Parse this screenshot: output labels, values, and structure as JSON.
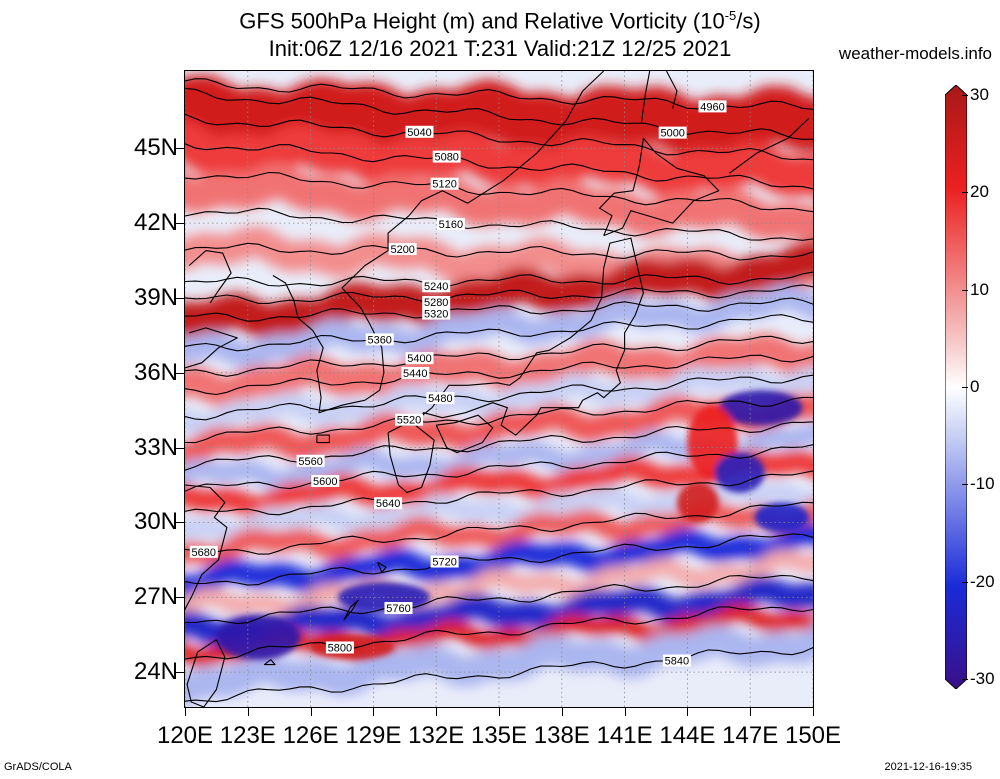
{
  "header": {
    "title_line1_pre": "GFS 500hPa Height (m) and Relative Vorticity (10",
    "title_line1_sup": "-5",
    "title_line1_post": "/s)",
    "title_line2": "Init:06Z 12/16 2021 T:231 Valid:21Z 12/25 2021",
    "site": "weather-models.info"
  },
  "map": {
    "lon_range": [
      120,
      150
    ],
    "lat_range": [
      22.6,
      48.1
    ],
    "lat_ticks": [
      {
        "value": 45,
        "label": "45N"
      },
      {
        "value": 42,
        "label": "42N"
      },
      {
        "value": 39,
        "label": "39N"
      },
      {
        "value": 36,
        "label": "36N"
      },
      {
        "value": 33,
        "label": "33N"
      },
      {
        "value": 30,
        "label": "30N"
      },
      {
        "value": 27,
        "label": "27N"
      },
      {
        "value": 24,
        "label": "24N"
      }
    ],
    "lon_ticks": [
      {
        "value": 120,
        "label": "120E"
      },
      {
        "value": 123,
        "label": "123E"
      },
      {
        "value": 126,
        "label": "126E"
      },
      {
        "value": 129,
        "label": "129E"
      },
      {
        "value": 132,
        "label": "132E"
      },
      {
        "value": 135,
        "label": "135E"
      },
      {
        "value": 138,
        "label": "138E"
      },
      {
        "value": 141,
        "label": "141E"
      },
      {
        "value": 144,
        "label": "144E"
      },
      {
        "value": 147,
        "label": "147E"
      },
      {
        "value": 150,
        "label": "150E"
      }
    ],
    "height_contours": [
      {
        "label": "4960",
        "lat_w": 47.6,
        "lat_e": 46.6,
        "label_lon": 145.2
      },
      {
        "label": "5000",
        "lat_w": 47.2,
        "lat_e": 45.4,
        "label_lon": 143.3
      },
      {
        "label": "5040",
        "lat_w": 46.2,
        "lat_e": 44.6,
        "label_lon": 131.2
      },
      {
        "label": "5080",
        "lat_w": 45.2,
        "lat_e": 43.5,
        "label_lon": 132.5
      },
      {
        "label": "5120",
        "lat_w": 44.0,
        "lat_e": 42.6,
        "label_lon": 132.4
      },
      {
        "label": "5160",
        "lat_w": 42.5,
        "lat_e": 41.4,
        "label_lon": 132.7
      },
      {
        "label": "5200",
        "lat_w": 41.0,
        "lat_e": 40.7,
        "label_lon": 130.4
      },
      {
        "label": "5240",
        "lat_w": 39.6,
        "lat_e": 39.8,
        "label_lon": 132.0
      },
      {
        "label": "5280",
        "lat_w": 38.9,
        "lat_e": 39.3,
        "label_lon": 132.0
      },
      {
        "label": "5320",
        "lat_w": 38.2,
        "lat_e": 38.8,
        "label_lon": 132.0
      },
      {
        "label": "5360",
        "lat_w": 37.0,
        "lat_e": 38.2,
        "label_lon": 129.3
      },
      {
        "label": "5400",
        "lat_w": 36.0,
        "lat_e": 37.4,
        "label_lon": 131.2
      },
      {
        "label": "5440",
        "lat_w": 35.3,
        "lat_e": 36.7,
        "label_lon": 131.0
      },
      {
        "label": "5480",
        "lat_w": 34.3,
        "lat_e": 35.9,
        "label_lon": 132.2
      },
      {
        "label": "5520",
        "lat_w": 33.4,
        "lat_e": 35.0,
        "label_lon": 130.7
      },
      {
        "label": "5560",
        "lat_w": 32.3,
        "lat_e": 34.0,
        "label_lon": 126.0
      },
      {
        "label": "5600",
        "lat_w": 31.3,
        "lat_e": 33.0,
        "label_lon": 126.7
      },
      {
        "label": "5640",
        "lat_w": 30.3,
        "lat_e": 31.9,
        "label_lon": 129.7
      },
      {
        "label": "5680",
        "lat_w": 28.7,
        "lat_e": 30.7,
        "label_lon": 120.9
      },
      {
        "label": "5720",
        "lat_w": 27.5,
        "lat_e": 29.5,
        "label_lon": 132.4
      },
      {
        "label": "5760",
        "lat_w": 26.0,
        "lat_e": 27.9,
        "label_lon": 130.2
      },
      {
        "label": "5800",
        "lat_w": 24.6,
        "lat_e": 26.7,
        "label_lon": 127.4
      },
      {
        "label": "5840",
        "lat_w": 22.9,
        "lat_e": 25.0,
        "label_lon": 143.5
      }
    ],
    "vorticity_field": {
      "description_units": "1e-5/s",
      "bands": [
        {
          "lat_w": 46.5,
          "lat_e": 46.0,
          "value": 24,
          "width_deg": 2.2
        },
        {
          "lat_w": 45.0,
          "lat_e": 44.0,
          "value": 18,
          "width_deg": 1.6
        },
        {
          "lat_w": 43.5,
          "lat_e": 42.2,
          "value": 14,
          "width_deg": 1.4
        },
        {
          "lat_w": 41.0,
          "lat_e": 40.0,
          "value": 12,
          "width_deg": 1.2
        },
        {
          "lat_w": 38.0,
          "lat_e": 40.2,
          "value": 26,
          "width_deg": 1.4
        },
        {
          "lat_w": 36.8,
          "lat_e": 38.8,
          "value": -10,
          "width_deg": 1.0
        },
        {
          "lat_w": 35.5,
          "lat_e": 36.8,
          "value": 14,
          "width_deg": 1.2
        },
        {
          "lat_w": 34.2,
          "lat_e": 35.8,
          "value": -8,
          "width_deg": 0.9
        },
        {
          "lat_w": 33.0,
          "lat_e": 34.6,
          "value": 16,
          "width_deg": 1.0
        },
        {
          "lat_w": 31.8,
          "lat_e": 33.3,
          "value": -10,
          "width_deg": 0.8
        },
        {
          "lat_w": 30.8,
          "lat_e": 32.3,
          "value": 18,
          "width_deg": 0.9
        },
        {
          "lat_w": 29.8,
          "lat_e": 31.2,
          "value": -8,
          "width_deg": 0.8
        },
        {
          "lat_w": 28.9,
          "lat_e": 30.4,
          "value": 16,
          "width_deg": 0.8
        },
        {
          "lat_w": 27.6,
          "lat_e": 29.3,
          "value": -20,
          "width_deg": 0.9
        },
        {
          "lat_w": 26.6,
          "lat_e": 28.3,
          "value": 10,
          "width_deg": 0.7
        },
        {
          "lat_w": 25.6,
          "lat_e": 27.1,
          "value": -22,
          "width_deg": 1.0
        },
        {
          "lat_w": 24.8,
          "lat_e": 26.2,
          "value": 22,
          "width_deg": 0.7
        },
        {
          "lat_w": 23.6,
          "lat_e": 25.2,
          "value": -10,
          "width_deg": 1.2
        }
      ],
      "blobs": [
        {
          "lon": 147.5,
          "lat": 34.6,
          "value": -26,
          "rlon": 2.0,
          "rlat": 0.7
        },
        {
          "lon": 145.2,
          "lat": 33.2,
          "value": 20,
          "rlon": 1.2,
          "rlat": 1.5
        },
        {
          "lon": 146.5,
          "lat": 32.0,
          "value": -24,
          "rlon": 1.2,
          "rlat": 0.8
        },
        {
          "lon": 144.5,
          "lat": 30.8,
          "value": 24,
          "rlon": 1.0,
          "rlat": 0.8
        },
        {
          "lon": 148.5,
          "lat": 30.2,
          "value": -22,
          "rlon": 1.3,
          "rlat": 0.6
        },
        {
          "lon": 123.5,
          "lat": 25.4,
          "value": -26,
          "rlon": 2.0,
          "rlat": 0.9
        },
        {
          "lon": 129.5,
          "lat": 27.0,
          "value": -24,
          "rlon": 2.2,
          "rlat": 0.6
        },
        {
          "lon": 128.0,
          "lat": 25.0,
          "value": 24,
          "rlon": 2.0,
          "rlat": 0.5
        }
      ]
    },
    "coastlines": [
      [
        [
          121.5,
          25.3
        ],
        [
          121.9,
          24.6
        ],
        [
          121.5,
          23.3
        ],
        [
          120.9,
          22.6
        ],
        [
          120.3,
          22.8
        ],
        [
          120.1,
          23.5
        ],
        [
          120.6,
          24.8
        ],
        [
          121.5,
          25.3
        ]
      ],
      [
        [
          120.0,
          31.5
        ],
        [
          121.2,
          31.4
        ],
        [
          121.9,
          30.8
        ],
        [
          121.4,
          30.2
        ],
        [
          122.0,
          29.8
        ],
        [
          121.6,
          28.5
        ],
        [
          120.8,
          27.9
        ],
        [
          120.3,
          27.0
        ],
        [
          119.8,
          26.2
        ]
      ],
      [
        [
          120.0,
          36.2
        ],
        [
          120.8,
          36.4
        ],
        [
          121.6,
          37.0
        ],
        [
          122.5,
          37.4
        ],
        [
          121.0,
          37.8
        ],
        [
          120.2,
          37.6
        ]
      ],
      [
        [
          121.2,
          38.8
        ],
        [
          121.6,
          39.3
        ],
        [
          122.2,
          40.0
        ],
        [
          121.8,
          40.8
        ],
        [
          121.0,
          40.9
        ],
        [
          120.2,
          40.3
        ]
      ],
      [
        [
          124.2,
          39.9
        ],
        [
          124.8,
          39.6
        ],
        [
          125.2,
          38.9
        ],
        [
          125.4,
          38.2
        ],
        [
          126.1,
          37.7
        ],
        [
          126.6,
          37.0
        ],
        [
          126.3,
          36.1
        ],
        [
          126.5,
          35.0
        ],
        [
          126.4,
          34.4
        ],
        [
          127.5,
          34.7
        ],
        [
          128.6,
          34.9
        ],
        [
          129.3,
          35.3
        ],
        [
          129.5,
          36.0
        ],
        [
          129.4,
          37.0
        ],
        [
          128.8,
          38.0
        ],
        [
          128.4,
          38.6
        ],
        [
          127.5,
          39.4
        ],
        [
          128.6,
          40.3
        ],
        [
          129.7,
          40.9
        ],
        [
          129.7,
          41.6
        ],
        [
          130.7,
          42.3
        ]
      ],
      [
        [
          130.7,
          42.3
        ],
        [
          131.3,
          42.9
        ],
        [
          132.3,
          43.3
        ],
        [
          133.5,
          42.8
        ],
        [
          135.2,
          43.7
        ],
        [
          136.8,
          44.8
        ],
        [
          138.2,
          46.1
        ],
        [
          139.0,
          47.3
        ],
        [
          140.0,
          48.1
        ]
      ],
      [
        [
          129.7,
          33.6
        ],
        [
          130.4,
          33.9
        ],
        [
          131.0,
          33.9
        ],
        [
          131.9,
          33.3
        ],
        [
          131.7,
          32.3
        ],
        [
          131.3,
          31.4
        ],
        [
          130.6,
          31.2
        ],
        [
          130.2,
          31.5
        ],
        [
          129.8,
          32.7
        ],
        [
          129.7,
          33.6
        ]
      ],
      [
        [
          132.0,
          33.9
        ],
        [
          132.9,
          34.0
        ],
        [
          134.0,
          34.3
        ],
        [
          134.7,
          33.8
        ],
        [
          134.2,
          33.2
        ],
        [
          133.0,
          32.8
        ],
        [
          132.5,
          33.0
        ],
        [
          132.0,
          33.9
        ]
      ],
      [
        [
          130.9,
          34.0
        ],
        [
          131.8,
          34.6
        ],
        [
          132.6,
          35.5
        ],
        [
          133.5,
          35.5
        ],
        [
          134.9,
          35.6
        ],
        [
          135.5,
          35.5
        ],
        [
          136.0,
          35.8
        ],
        [
          136.8,
          36.8
        ],
        [
          137.4,
          36.9
        ],
        [
          138.4,
          37.4
        ],
        [
          139.4,
          38.1
        ],
        [
          139.9,
          39.0
        ],
        [
          140.0,
          40.2
        ],
        [
          140.3,
          41.2
        ],
        [
          141.3,
          41.4
        ],
        [
          141.6,
          40.3
        ],
        [
          141.9,
          39.2
        ],
        [
          141.5,
          38.3
        ],
        [
          141.0,
          37.6
        ],
        [
          141.0,
          36.9
        ],
        [
          140.6,
          36.1
        ],
        [
          140.8,
          35.6
        ],
        [
          140.0,
          35.0
        ],
        [
          139.7,
          35.2
        ],
        [
          139.0,
          34.9
        ],
        [
          138.8,
          34.6
        ],
        [
          138.2,
          34.6
        ],
        [
          137.0,
          34.6
        ],
        [
          136.8,
          34.3
        ],
        [
          135.8,
          33.5
        ],
        [
          135.1,
          33.9
        ],
        [
          135.4,
          34.6
        ],
        [
          134.7,
          34.8
        ],
        [
          133.4,
          34.4
        ],
        [
          132.3,
          34.2
        ],
        [
          131.4,
          34.4
        ],
        [
          130.9,
          34.0
        ]
      ],
      [
        [
          140.0,
          41.5
        ],
        [
          140.4,
          42.3
        ],
        [
          139.8,
          42.6
        ],
        [
          140.5,
          43.2
        ],
        [
          141.4,
          43.3
        ],
        [
          141.7,
          44.3
        ],
        [
          141.9,
          45.4
        ],
        [
          142.5,
          44.8
        ],
        [
          143.5,
          44.2
        ],
        [
          144.8,
          43.9
        ],
        [
          145.5,
          43.3
        ],
        [
          144.3,
          42.9
        ],
        [
          143.3,
          42.0
        ],
        [
          141.3,
          42.5
        ],
        [
          140.9,
          41.8
        ],
        [
          140.0,
          41.5
        ]
      ],
      [
        [
          141.8,
          46.0
        ],
        [
          142.0,
          47.2
        ],
        [
          142.2,
          48.1
        ]
      ],
      [
        [
          143.3,
          46.6
        ],
        [
          143.5,
          47.3
        ],
        [
          143.0,
          48.1
        ]
      ],
      [
        [
          146.0,
          44.0
        ],
        [
          147.3,
          44.8
        ],
        [
          148.8,
          45.4
        ],
        [
          149.8,
          46.2
        ]
      ],
      [
        [
          128.2,
          26.8
        ],
        [
          128.0,
          26.5
        ],
        [
          127.6,
          26.1
        ],
        [
          127.9,
          26.6
        ],
        [
          128.3,
          26.9
        ]
      ],
      [
        [
          126.3,
          33.5
        ],
        [
          126.9,
          33.5
        ],
        [
          126.9,
          33.2
        ],
        [
          126.3,
          33.2
        ],
        [
          126.3,
          33.5
        ]
      ],
      [
        [
          129.2,
          28.4
        ],
        [
          129.6,
          28.2
        ],
        [
          129.4,
          28.0
        ],
        [
          129.2,
          28.4
        ]
      ],
      [
        [
          124.1,
          24.5
        ],
        [
          124.3,
          24.3
        ],
        [
          123.8,
          24.3
        ],
        [
          124.1,
          24.5
        ]
      ]
    ]
  },
  "colorbar": {
    "min": -30,
    "max": 30,
    "ticks": [
      {
        "value": 30,
        "label": "30"
      },
      {
        "value": 20,
        "label": "20"
      },
      {
        "value": 10,
        "label": "10"
      },
      {
        "value": 0,
        "label": "0"
      },
      {
        "value": -10,
        "label": "-10"
      },
      {
        "value": -20,
        "label": "-20"
      },
      {
        "value": -30,
        "label": "-30"
      }
    ],
    "colors": {
      "neg_max": "#3a1088",
      "neg_mid": "#1a2bd8",
      "neg_low": "#c8d0f4",
      "zero": "#ffffff",
      "pos_low": "#f6c4c4",
      "pos_mid": "#ec2020",
      "pos_max": "#a81818"
    }
  },
  "footer": {
    "left": "GrADS/COLA",
    "right": "2021-12-16-19:35"
  }
}
